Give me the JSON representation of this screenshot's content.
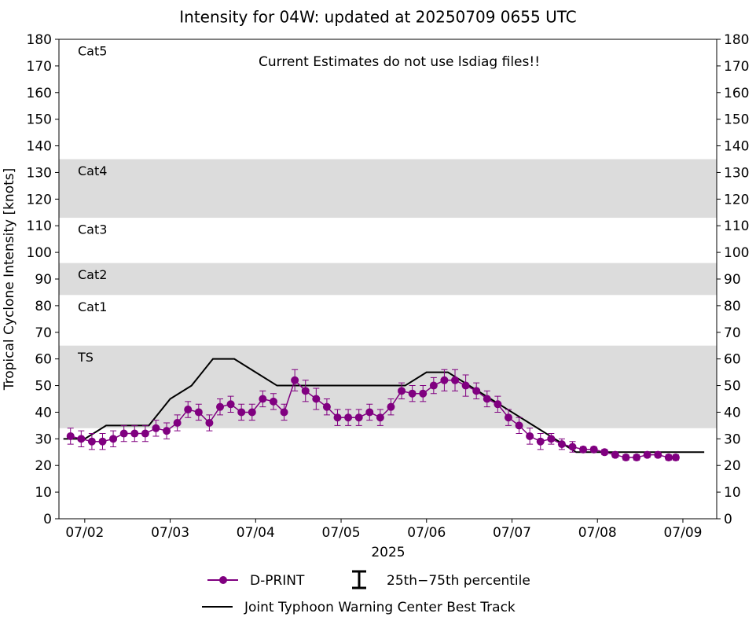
{
  "chart_data": {
    "type": "line",
    "title": "Intensity for 04W: updated at 20250709 0655 UTC",
    "ylabel": "Tropical Cyclone Intensity [knots]",
    "xlabel": "2025",
    "annotation": "Current Estimates do not use lsdiag files!!",
    "ylim": [
      0,
      180
    ],
    "yticks": [
      0,
      10,
      20,
      30,
      40,
      50,
      60,
      70,
      80,
      90,
      100,
      110,
      120,
      130,
      140,
      150,
      160,
      170,
      180
    ],
    "xlim": [
      "2025-07-01T16:45",
      "2025-07-09T09:30"
    ],
    "xticks": [
      {
        "value": "2025-07-02T00:00",
        "label": "07/02"
      },
      {
        "value": "2025-07-03T00:00",
        "label": "07/03"
      },
      {
        "value": "2025-07-04T00:00",
        "label": "07/04"
      },
      {
        "value": "2025-07-05T00:00",
        "label": "07/05"
      },
      {
        "value": "2025-07-06T00:00",
        "label": "07/06"
      },
      {
        "value": "2025-07-07T00:00",
        "label": "07/07"
      },
      {
        "value": "2025-07-08T00:00",
        "label": "07/08"
      },
      {
        "value": "2025-07-09T00:00",
        "label": "07/09"
      }
    ],
    "bands": [
      {
        "label": "TS",
        "range": [
          34,
          65
        ],
        "shaded": true
      },
      {
        "label": "Cat1",
        "range": [
          65,
          84
        ],
        "shaded": false
      },
      {
        "label": "Cat2",
        "range": [
          84,
          96
        ],
        "shaded": true
      },
      {
        "label": "Cat3",
        "range": [
          96,
          113
        ],
        "shaded": false
      },
      {
        "label": "Cat4",
        "range": [
          113,
          135
        ],
        "shaded": true
      },
      {
        "label": "Cat5",
        "range": [
          135,
          180
        ],
        "shaded": false
      }
    ],
    "band_color": "#dcdcdc",
    "series": [
      {
        "name": "D-PRINT",
        "color": "#800080",
        "x": [
          "2025-07-01T20:00",
          "2025-07-01T23:00",
          "2025-07-02T02:00",
          "2025-07-02T05:00",
          "2025-07-02T08:00",
          "2025-07-02T11:00",
          "2025-07-02T14:00",
          "2025-07-02T17:00",
          "2025-07-02T20:00",
          "2025-07-02T23:00",
          "2025-07-03T02:00",
          "2025-07-03T05:00",
          "2025-07-03T08:00",
          "2025-07-03T11:00",
          "2025-07-03T14:00",
          "2025-07-03T17:00",
          "2025-07-03T20:00",
          "2025-07-03T23:00",
          "2025-07-04T02:00",
          "2025-07-04T05:00",
          "2025-07-04T08:00",
          "2025-07-04T11:00",
          "2025-07-04T14:00",
          "2025-07-04T17:00",
          "2025-07-04T20:00",
          "2025-07-04T23:00",
          "2025-07-05T02:00",
          "2025-07-05T05:00",
          "2025-07-05T08:00",
          "2025-07-05T11:00",
          "2025-07-05T14:00",
          "2025-07-05T17:00",
          "2025-07-05T20:00",
          "2025-07-05T23:00",
          "2025-07-06T02:00",
          "2025-07-06T05:00",
          "2025-07-06T08:00",
          "2025-07-06T11:00",
          "2025-07-06T14:00",
          "2025-07-06T17:00",
          "2025-07-06T20:00",
          "2025-07-06T23:00",
          "2025-07-07T02:00",
          "2025-07-07T05:00",
          "2025-07-07T08:00",
          "2025-07-07T11:00",
          "2025-07-07T14:00",
          "2025-07-07T17:00",
          "2025-07-07T20:00",
          "2025-07-07T23:00",
          "2025-07-08T02:00",
          "2025-07-08T05:00",
          "2025-07-08T08:00",
          "2025-07-08T11:00",
          "2025-07-08T14:00",
          "2025-07-08T17:00",
          "2025-07-08T20:00",
          "2025-07-08T22:00"
        ],
        "values": [
          31,
          30,
          29,
          29,
          30,
          32,
          32,
          32,
          34,
          33,
          36,
          41,
          40,
          36,
          42,
          43,
          40,
          40,
          45,
          44,
          40,
          52,
          48,
          45,
          42,
          38,
          38,
          38,
          40,
          38,
          42,
          48,
          47,
          47,
          50,
          52,
          52,
          50,
          48,
          45,
          43,
          38,
          35,
          31,
          29,
          30,
          28,
          27,
          26,
          26,
          25,
          24,
          23,
          23,
          24,
          24,
          23,
          23
        ],
        "errors": [
          3,
          3,
          3,
          3,
          3,
          3,
          3,
          3,
          3,
          3,
          3,
          3,
          3,
          3,
          3,
          3,
          3,
          3,
          3,
          3,
          3,
          4,
          4,
          4,
          3,
          3,
          3,
          3,
          3,
          3,
          3,
          3,
          3,
          3,
          3,
          4,
          4,
          4,
          3,
          3,
          3,
          3,
          3,
          3,
          3,
          2,
          2,
          2,
          1,
          1,
          1,
          1,
          1,
          1,
          1,
          1,
          1,
          1
        ]
      },
      {
        "name": "Joint Typhoon Warning Center Best Track",
        "color": "#000000",
        "x": [
          "2025-07-01T18:00",
          "2025-07-02T00:00",
          "2025-07-02T06:00",
          "2025-07-02T12:00",
          "2025-07-02T18:00",
          "2025-07-03T00:00",
          "2025-07-03T06:00",
          "2025-07-03T12:00",
          "2025-07-03T18:00",
          "2025-07-04T00:00",
          "2025-07-04T06:00",
          "2025-07-04T12:00",
          "2025-07-04T18:00",
          "2025-07-05T00:00",
          "2025-07-05T06:00",
          "2025-07-05T12:00",
          "2025-07-05T18:00",
          "2025-07-06T00:00",
          "2025-07-06T06:00",
          "2025-07-06T12:00",
          "2025-07-06T18:00",
          "2025-07-07T00:00",
          "2025-07-07T06:00",
          "2025-07-07T12:00",
          "2025-07-07T18:00",
          "2025-07-08T00:00",
          "2025-07-08T06:00",
          "2025-07-08T12:00",
          "2025-07-08T18:00",
          "2025-07-09T00:00",
          "2025-07-09T06:00"
        ],
        "values": [
          30,
          30,
          35,
          35,
          35,
          45,
          50,
          60,
          60,
          55,
          50,
          50,
          50,
          50,
          50,
          50,
          50,
          55,
          55,
          50,
          45,
          40,
          35,
          30,
          25,
          25,
          25,
          25,
          25,
          25,
          25
        ]
      }
    ],
    "error_legend": "25th−75th percentile"
  }
}
